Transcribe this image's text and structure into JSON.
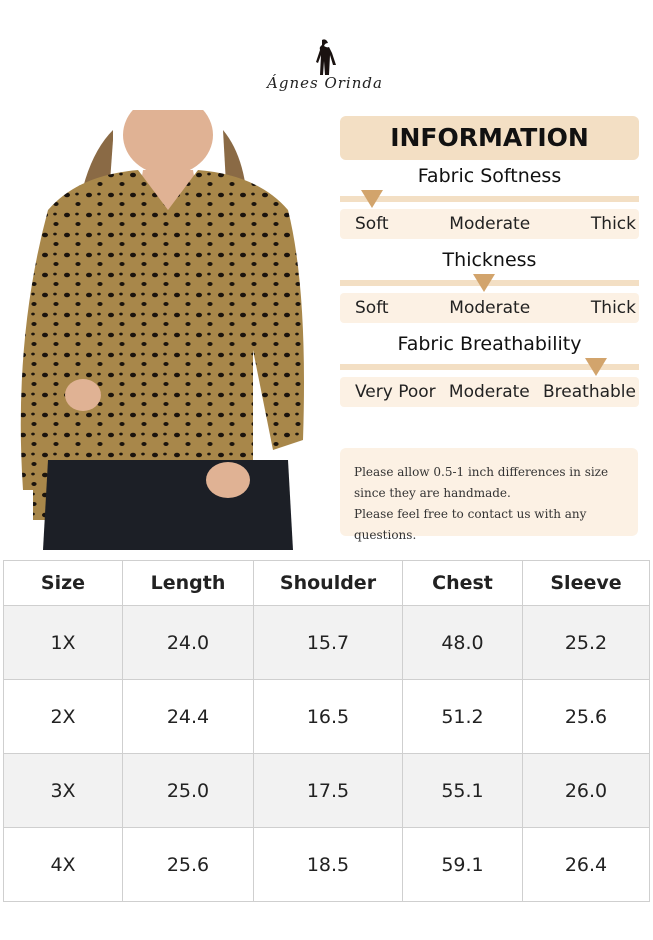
{
  "brand": {
    "name": "Ágnes Orinda"
  },
  "info": {
    "title": "INFORMATION",
    "metrics": [
      {
        "name": "Fabric Softness",
        "labels": [
          "Soft",
          "Moderate",
          "Thick"
        ],
        "level": 0
      },
      {
        "name": "Thickness",
        "labels": [
          "Soft",
          "Moderate",
          "Thick"
        ],
        "level": 0.5
      },
      {
        "name": "Fabric Breathability",
        "labels": [
          "Very Poor",
          "Moderate",
          "Breathable"
        ],
        "level": 1
      }
    ],
    "accent": "#d2a46c",
    "panel_color": "#f3dfc4"
  },
  "note": {
    "lines": [
      "Please allow 0.5-1 inch differences in size",
      "since they are handmade.",
      "Please feel free to contact us with any questions."
    ]
  },
  "size_table": {
    "headers": [
      "Size",
      "Length",
      "Shoulder",
      "Chest",
      "Sleeve"
    ],
    "rows": [
      [
        "1X",
        "24.0",
        "15.7",
        "48.0",
        "25.2"
      ],
      [
        "2X",
        "24.4",
        "16.5",
        "51.2",
        "25.6"
      ],
      [
        "3X",
        "25.0",
        "17.5",
        "55.1",
        "26.0"
      ],
      [
        "4X",
        "25.6",
        "18.5",
        "59.1",
        "26.4"
      ]
    ]
  }
}
